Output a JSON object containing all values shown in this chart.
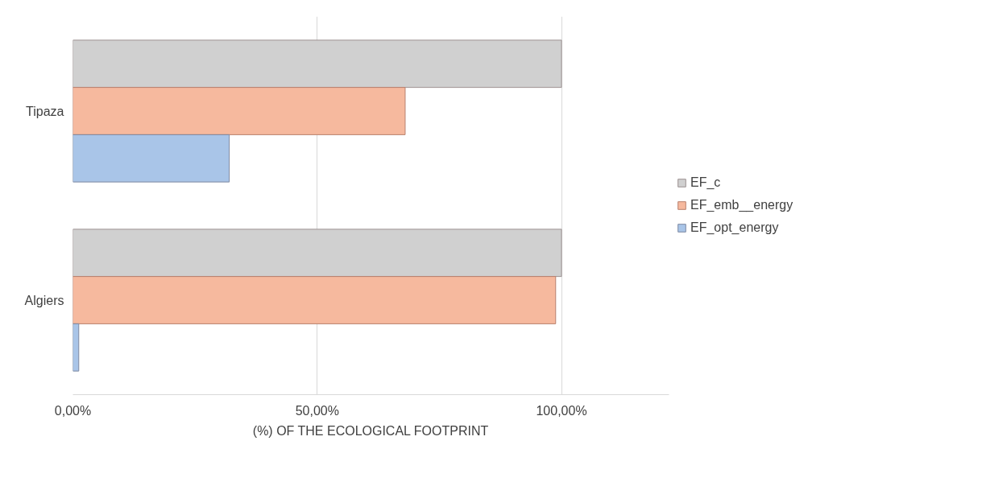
{
  "chart_data": {
    "type": "bar",
    "orientation": "horizontal",
    "xlabel": "(%) OF THE ECOLOGICAL FOOTPRINT",
    "categories": [
      "Tipaza",
      "Algiers"
    ],
    "series": [
      {
        "name": "EF_c",
        "color": "#d0d0d0",
        "values": [
          100,
          100
        ]
      },
      {
        "name": "EF_emb__energy",
        "color": "#f6b99e",
        "values": [
          68,
          98.8
        ]
      },
      {
        "name": "EF_opt_energy",
        "color": "#a9c5e8",
        "values": [
          32,
          1.2
        ]
      }
    ],
    "xlim": [
      0,
      122
    ],
    "xticks": [
      {
        "value": 0,
        "label": "0,00%"
      },
      {
        "value": 50,
        "label": "50,00%"
      },
      {
        "value": 100,
        "label": "100,00%"
      }
    ],
    "grid": "x",
    "legend": "right"
  }
}
